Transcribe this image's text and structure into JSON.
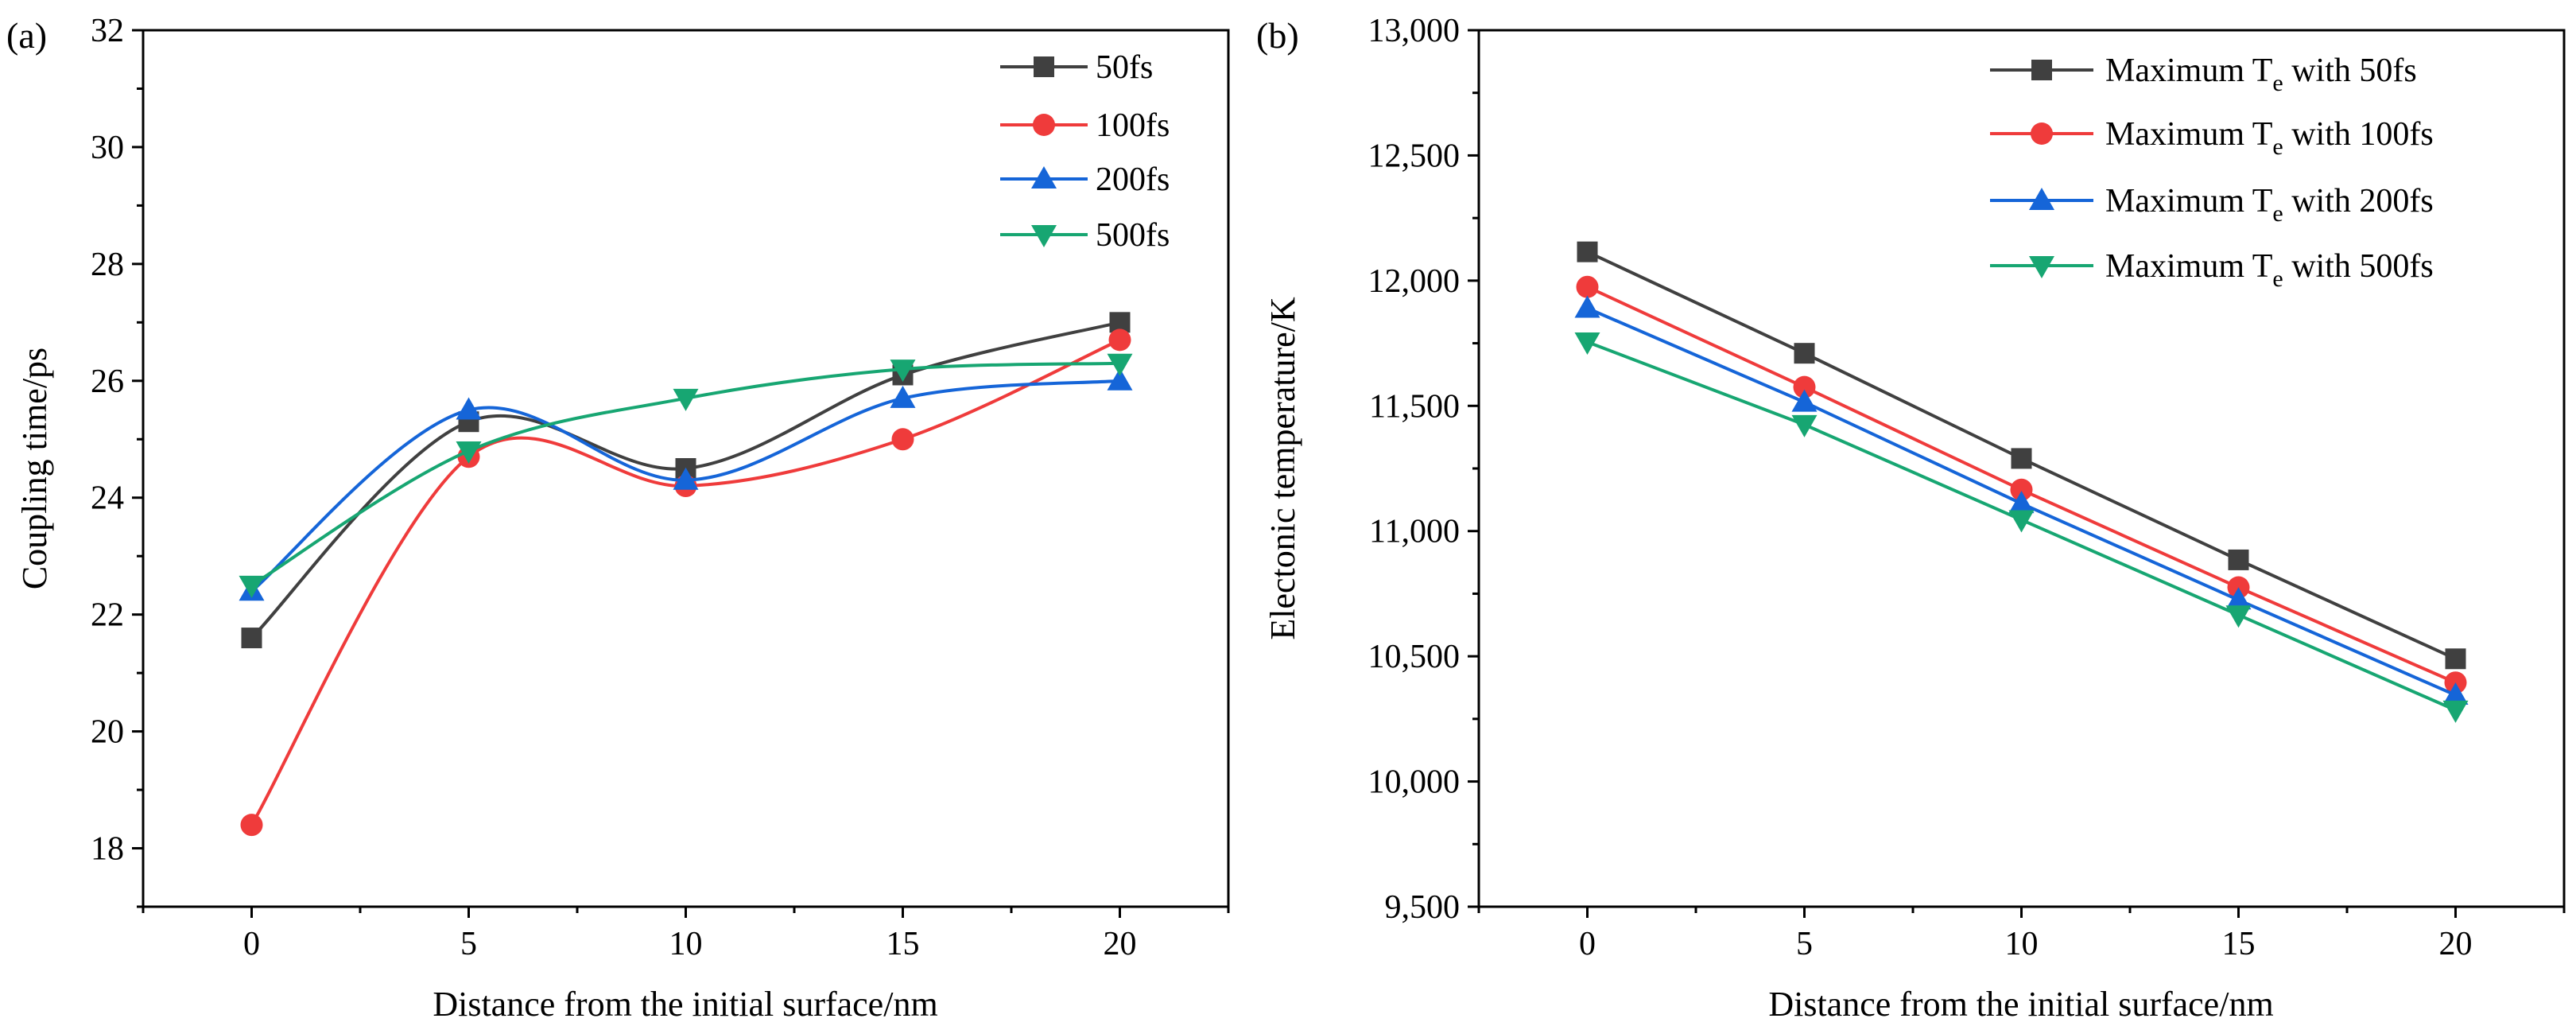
{
  "chart_data": [
    {
      "panel_label": "(a)",
      "type": "line",
      "smooth": true,
      "x": [
        0,
        5,
        10,
        15,
        20
      ],
      "xticks": [
        "0",
        "5",
        "10",
        "15",
        "20"
      ],
      "xlim": [
        -2.5,
        22.5
      ],
      "ylim": [
        17,
        32
      ],
      "yticks": [
        "18",
        "20",
        "22",
        "24",
        "26",
        "28",
        "30",
        "32"
      ],
      "ytick_values": [
        18,
        20,
        22,
        24,
        26,
        28,
        30,
        32
      ],
      "xlabel": "Distance from the initial surface/nm",
      "ylabel": "Coupling time/ps",
      "legend_position": "top-right",
      "series": [
        {
          "name": "50fs",
          "values": [
            21.6,
            25.3,
            24.5,
            26.1,
            27.0
          ],
          "color": "#404040",
          "marker": "square"
        },
        {
          "name": "100fs",
          "values": [
            18.4,
            24.7,
            24.2,
            25.0,
            26.7
          ],
          "color": "#ef3b3b",
          "marker": "circle"
        },
        {
          "name": "200fs",
          "values": [
            22.4,
            25.5,
            24.3,
            25.7,
            26.0
          ],
          "color": "#1565d8",
          "marker": "triangle-up"
        },
        {
          "name": "500fs",
          "values": [
            22.5,
            24.8,
            25.7,
            26.2,
            26.3
          ],
          "color": "#17a672",
          "marker": "triangle-down"
        }
      ]
    },
    {
      "panel_label": "(b)",
      "type": "line",
      "smooth": false,
      "x": [
        0,
        5,
        10,
        15,
        20
      ],
      "xticks": [
        "0",
        "5",
        "10",
        "15",
        "20"
      ],
      "xlim": [
        -2.5,
        22.5
      ],
      "ylim": [
        9500,
        13000
      ],
      "yticks": [
        "9,500",
        "10,000",
        "10,500",
        "11,000",
        "11,500",
        "12,000",
        "12,500",
        "13,000"
      ],
      "ytick_values": [
        9500,
        10000,
        10500,
        11000,
        11500,
        12000,
        12500,
        13000
      ],
      "xlabel": "Distance from the initial surface/nm",
      "ylabel": "Electonic temperature/K",
      "legend_position": "top-right",
      "series": [
        {
          "name_prefix": "Maximum T",
          "name_sub": "e",
          "name_suffix": " with 50fs",
          "values": [
            12115,
            11710,
            11290,
            10885,
            10490
          ],
          "color": "#404040",
          "marker": "square"
        },
        {
          "name_prefix": "Maximum T",
          "name_sub": "e",
          "name_suffix": " with 100fs",
          "values": [
            11975,
            11575,
            11165,
            10775,
            10395
          ],
          "color": "#ef3b3b",
          "marker": "circle"
        },
        {
          "name_prefix": "Maximum T",
          "name_sub": "e",
          "name_suffix": " with 200fs",
          "values": [
            11890,
            11515,
            11110,
            10725,
            10345
          ],
          "color": "#1565d8",
          "marker": "triangle-up"
        },
        {
          "name_prefix": "Maximum T",
          "name_sub": "e",
          "name_suffix": " with 500fs",
          "values": [
            11755,
            11425,
            11045,
            10665,
            10285
          ],
          "color": "#17a672",
          "marker": "triangle-down"
        }
      ]
    }
  ]
}
